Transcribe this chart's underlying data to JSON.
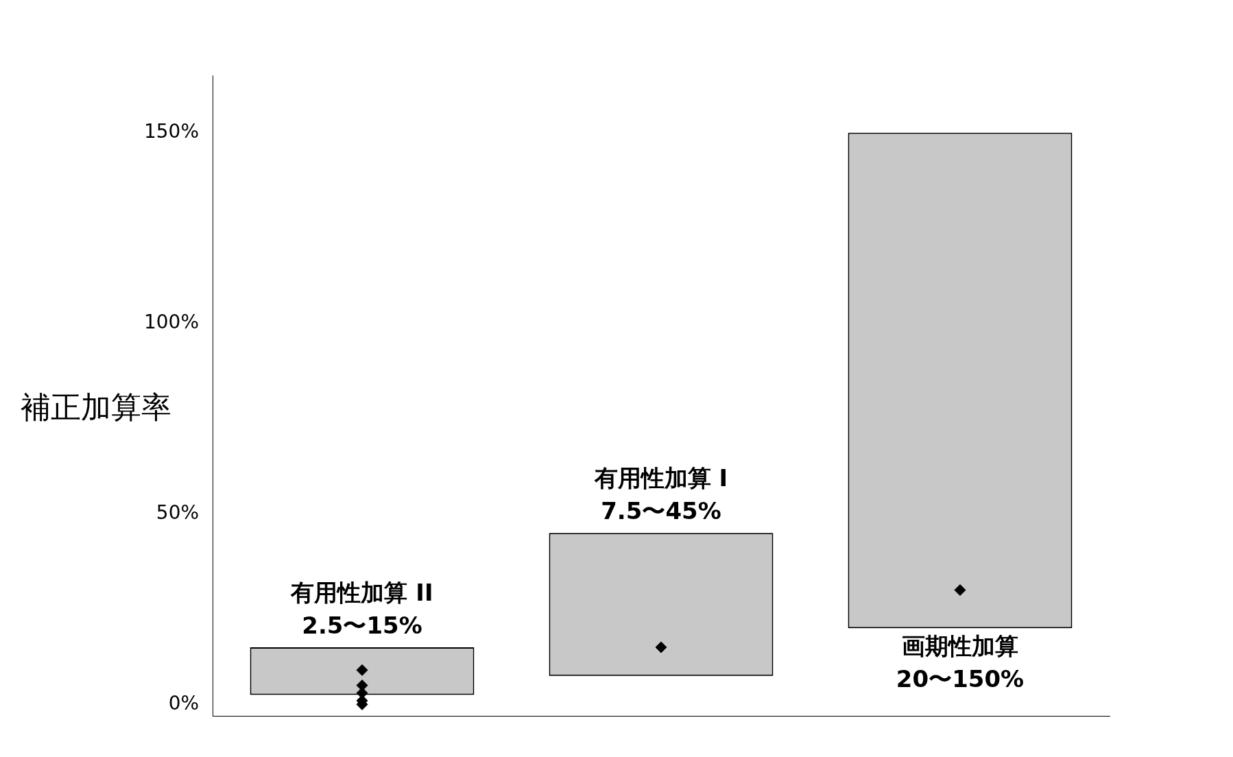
{
  "chart_data": {
    "type": "bar",
    "ylabel": "補正加算率",
    "categories": [
      "有用性加算 II",
      "有用性加算 I",
      "画期性加算"
    ],
    "base": [
      2.5,
      7.5,
      20
    ],
    "values": [
      12.5,
      37.5,
      130
    ],
    "color": "#c8c8c8",
    "annotations": [
      {
        "text": "2.5〜15%",
        "x": "有用性加算 II",
        "y": 15
      },
      {
        "text": "7.5〜45%",
        "x": "有用性加算 I",
        "y": 45
      },
      {
        "text": "20〜150%",
        "x": "画期性加算",
        "y": 20
      }
    ],
    "series": [
      {
        "type": "scatter",
        "x": [
          "有用性加算 II",
          "有用性加算 II",
          "有用性加算 II",
          "有用性加算 II",
          "有用性加算 II",
          "有用性加算 I",
          "画期性加算"
        ],
        "values": [
          0,
          1,
          3,
          5,
          9,
          15,
          30
        ],
        "color": "#000000"
      }
    ],
    "marker": "diamond",
    "ylim": [
      -3,
      165
    ],
    "yticks": [
      {
        "value": 0,
        "label": "0%"
      },
      {
        "value": 50,
        "label": "50%"
      },
      {
        "value": 100,
        "label": "100%"
      },
      {
        "value": 150,
        "label": "150%"
      }
    ],
    "grid": false,
    "legend": false
  }
}
